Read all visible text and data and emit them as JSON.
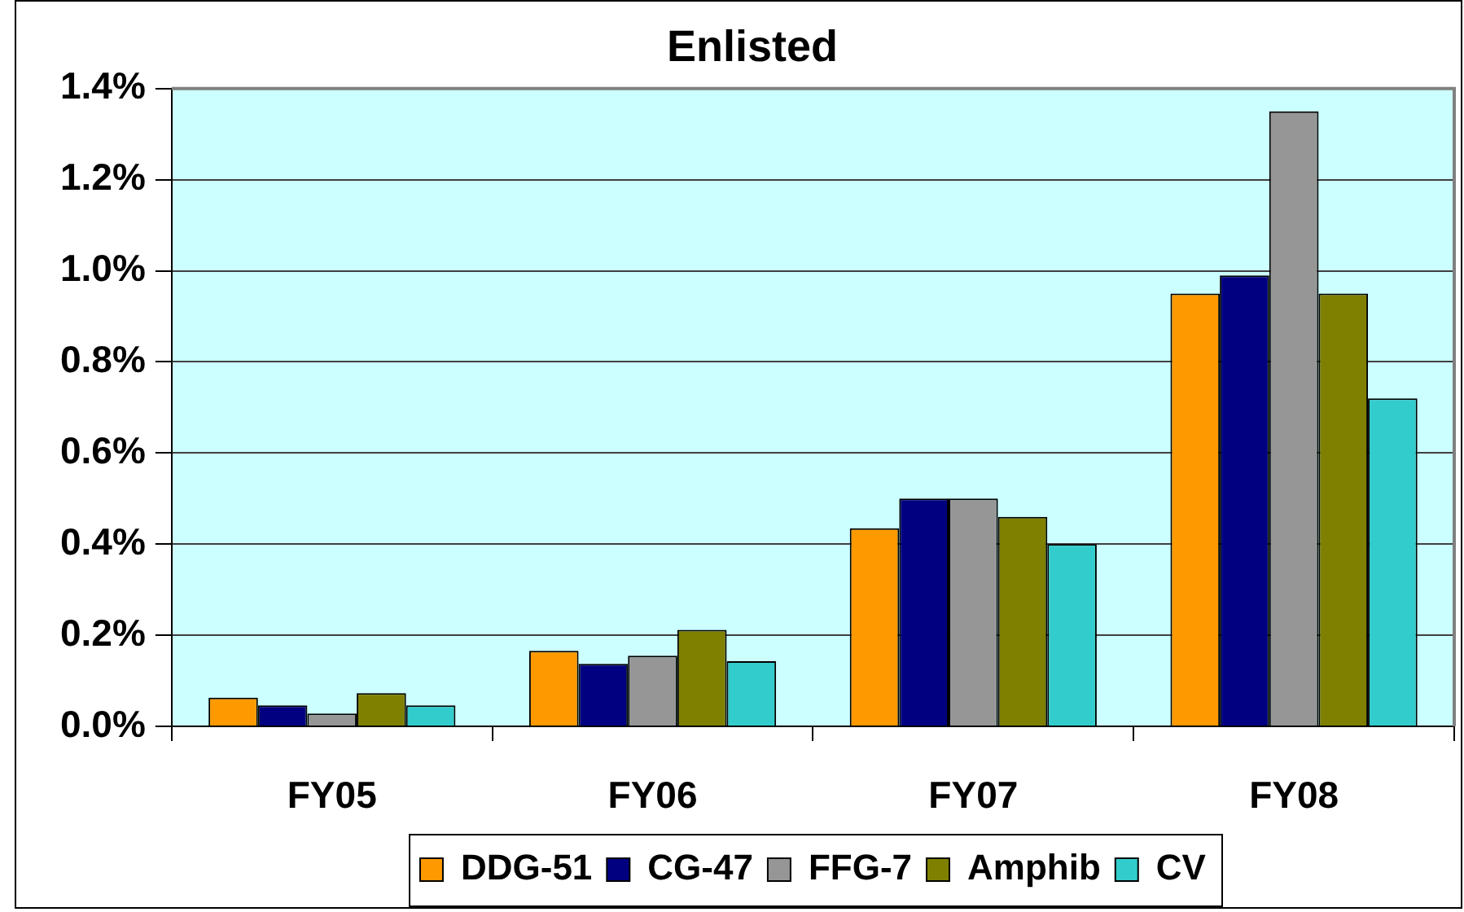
{
  "chart_data": {
    "type": "bar",
    "title": "Enlisted",
    "categories": [
      "FY05",
      "FY06",
      "FY07",
      "FY08"
    ],
    "series": [
      {
        "name": "DDG-51",
        "color": "#ff9900",
        "values": [
          0.063,
          0.166,
          0.435,
          0.95
        ]
      },
      {
        "name": "CG-47",
        "color": "#000080",
        "values": [
          0.046,
          0.137,
          0.5,
          0.99
        ]
      },
      {
        "name": "FFG-7",
        "color": "#969696",
        "values": [
          0.028,
          0.155,
          0.5,
          1.35
        ]
      },
      {
        "name": "Amphib",
        "color": "#808000",
        "values": [
          0.073,
          0.212,
          0.46,
          0.95
        ]
      },
      {
        "name": "CV",
        "color": "#33cccc",
        "values": [
          0.046,
          0.143,
          0.4,
          0.72
        ]
      }
    ],
    "ylim": [
      0,
      1.4
    ],
    "yticks": [
      {
        "value": 0,
        "label": "0.0%"
      },
      {
        "value": 0.2,
        "label": "0.2%"
      },
      {
        "value": 0.4,
        "label": "0.4%"
      },
      {
        "value": 0.6,
        "label": "0.6%"
      },
      {
        "value": 0.8,
        "label": "0.8%"
      },
      {
        "value": 1.0,
        "label": "1.0%"
      },
      {
        "value": 1.2,
        "label": "1.2%"
      },
      {
        "value": 1.4,
        "label": "1.4%"
      }
    ],
    "grid": "y",
    "legend": "bottom"
  }
}
